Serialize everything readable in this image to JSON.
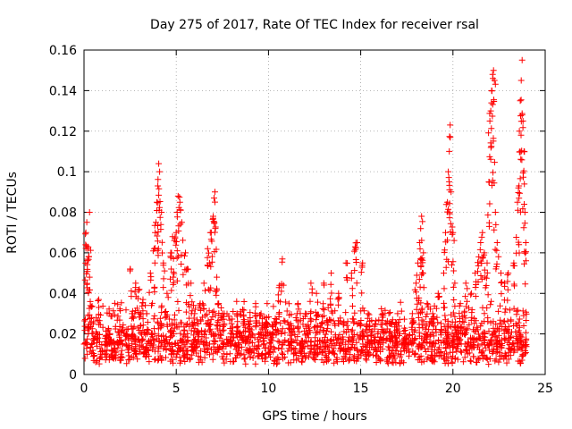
{
  "chart_data": {
    "type": "scatter",
    "title": "Day 275 of 2017, Rate Of TEC Index for receiver rsal",
    "xlabel": "GPS time / hours",
    "ylabel": "ROTI / TECUs",
    "xlim": [
      0,
      25
    ],
    "ylim": [
      0,
      0.16
    ],
    "x_ticks": [
      0,
      5,
      10,
      15,
      20,
      25
    ],
    "x_tick_labels": [
      "0",
      "5",
      "10",
      "15",
      "20",
      "25"
    ],
    "y_ticks": [
      0,
      0.02,
      0.04,
      0.06,
      0.08,
      0.1,
      0.12,
      0.14,
      0.16
    ],
    "y_tick_labels": [
      "0",
      "0.02",
      "0.04",
      "0.06",
      "0.08",
      "0.1",
      "0.12",
      "0.14",
      "0.16"
    ],
    "grid": true,
    "marker": "+",
    "marker_color": "#ff0000",
    "approximate_points": [
      [
        0.0,
        0.015
      ],
      [
        0.1,
        0.07
      ],
      [
        0.15,
        0.075
      ],
      [
        0.2,
        0.062
      ],
      [
        0.25,
        0.058
      ],
      [
        0.3,
        0.048
      ],
      [
        0.3,
        0.08
      ],
      [
        0.35,
        0.034
      ],
      [
        0.5,
        0.025
      ],
      [
        0.7,
        0.02
      ],
      [
        0.8,
        0.037
      ],
      [
        0.9,
        0.01
      ],
      [
        1.2,
        0.015
      ],
      [
        1.5,
        0.012
      ],
      [
        2.0,
        0.01
      ],
      [
        2.3,
        0.02
      ],
      [
        2.5,
        0.052
      ],
      [
        2.6,
        0.03
      ],
      [
        2.8,
        0.045
      ],
      [
        3.0,
        0.042
      ],
      [
        3.2,
        0.037
      ],
      [
        3.4,
        0.03
      ],
      [
        3.6,
        0.05
      ],
      [
        3.8,
        0.062
      ],
      [
        3.9,
        0.075
      ],
      [
        3.95,
        0.085
      ],
      [
        4.0,
        0.093
      ],
      [
        4.05,
        0.104
      ],
      [
        4.1,
        0.1
      ],
      [
        4.2,
        0.08
      ],
      [
        4.3,
        0.055
      ],
      [
        4.5,
        0.04
      ],
      [
        4.7,
        0.06
      ],
      [
        4.8,
        0.068
      ],
      [
        4.9,
        0.066
      ],
      [
        5.0,
        0.07
      ],
      [
        5.05,
        0.08
      ],
      [
        5.1,
        0.088
      ],
      [
        5.2,
        0.085
      ],
      [
        5.3,
        0.075
      ],
      [
        5.5,
        0.06
      ],
      [
        5.6,
        0.052
      ],
      [
        5.8,
        0.045
      ],
      [
        6.0,
        0.03
      ],
      [
        6.3,
        0.035
      ],
      [
        6.5,
        0.045
      ],
      [
        6.7,
        0.062
      ],
      [
        6.8,
        0.055
      ],
      [
        6.9,
        0.07
      ],
      [
        7.0,
        0.078
      ],
      [
        7.05,
        0.087
      ],
      [
        7.1,
        0.09
      ],
      [
        7.2,
        0.048
      ],
      [
        7.3,
        0.035
      ],
      [
        7.6,
        0.03
      ],
      [
        8.0,
        0.025
      ],
      [
        8.3,
        0.03
      ],
      [
        8.6,
        0.032
      ],
      [
        9.0,
        0.028
      ],
      [
        9.3,
        0.035
      ],
      [
        9.6,
        0.03
      ],
      [
        9.9,
        0.028
      ],
      [
        10.2,
        0.02
      ],
      [
        10.6,
        0.044
      ],
      [
        10.75,
        0.057
      ],
      [
        11.2,
        0.025
      ],
      [
        11.6,
        0.035
      ],
      [
        12.0,
        0.03
      ],
      [
        12.3,
        0.045
      ],
      [
        12.6,
        0.04
      ],
      [
        13.0,
        0.045
      ],
      [
        13.4,
        0.05
      ],
      [
        13.8,
        0.04
      ],
      [
        14.2,
        0.055
      ],
      [
        14.5,
        0.05
      ],
      [
        14.7,
        0.063
      ],
      [
        14.8,
        0.065
      ],
      [
        15.1,
        0.055
      ],
      [
        15.4,
        0.03
      ],
      [
        15.8,
        0.025
      ],
      [
        16.2,
        0.03
      ],
      [
        16.6,
        0.025
      ],
      [
        17.0,
        0.03
      ],
      [
        17.4,
        0.02
      ],
      [
        17.8,
        0.03
      ],
      [
        18.0,
        0.045
      ],
      [
        18.1,
        0.055
      ],
      [
        18.2,
        0.065
      ],
      [
        18.25,
        0.072
      ],
      [
        18.3,
        0.078
      ],
      [
        18.4,
        0.06
      ],
      [
        18.6,
        0.035
      ],
      [
        18.9,
        0.03
      ],
      [
        19.2,
        0.04
      ],
      [
        19.5,
        0.05
      ],
      [
        19.6,
        0.07
      ],
      [
        19.7,
        0.085
      ],
      [
        19.75,
        0.1
      ],
      [
        19.8,
        0.11
      ],
      [
        19.85,
        0.123
      ],
      [
        19.9,
        0.09
      ],
      [
        20.0,
        0.07
      ],
      [
        20.1,
        0.045
      ],
      [
        20.4,
        0.035
      ],
      [
        20.7,
        0.045
      ],
      [
        21.0,
        0.04
      ],
      [
        21.2,
        0.05
      ],
      [
        21.4,
        0.058
      ],
      [
        21.5,
        0.065
      ],
      [
        21.6,
        0.07
      ],
      [
        21.7,
        0.06
      ],
      [
        21.85,
        0.055
      ],
      [
        21.95,
        0.095
      ],
      [
        22.0,
        0.125
      ],
      [
        22.05,
        0.13
      ],
      [
        22.1,
        0.14
      ],
      [
        22.15,
        0.148
      ],
      [
        22.2,
        0.15
      ],
      [
        22.25,
        0.145
      ],
      [
        22.3,
        0.08
      ],
      [
        22.4,
        0.065
      ],
      [
        22.6,
        0.05
      ],
      [
        22.8,
        0.045
      ],
      [
        23.0,
        0.05
      ],
      [
        23.3,
        0.055
      ],
      [
        23.5,
        0.085
      ],
      [
        23.55,
        0.092
      ],
      [
        23.6,
        0.12
      ],
      [
        23.65,
        0.135
      ],
      [
        23.7,
        0.145
      ],
      [
        23.75,
        0.155
      ],
      [
        23.8,
        0.125
      ],
      [
        23.85,
        0.11
      ],
      [
        23.9,
        0.08
      ],
      [
        23.95,
        0.065
      ]
    ],
    "baseline": {
      "x_range": [
        0,
        24
      ],
      "y_range": [
        0.005,
        0.025
      ]
    }
  }
}
